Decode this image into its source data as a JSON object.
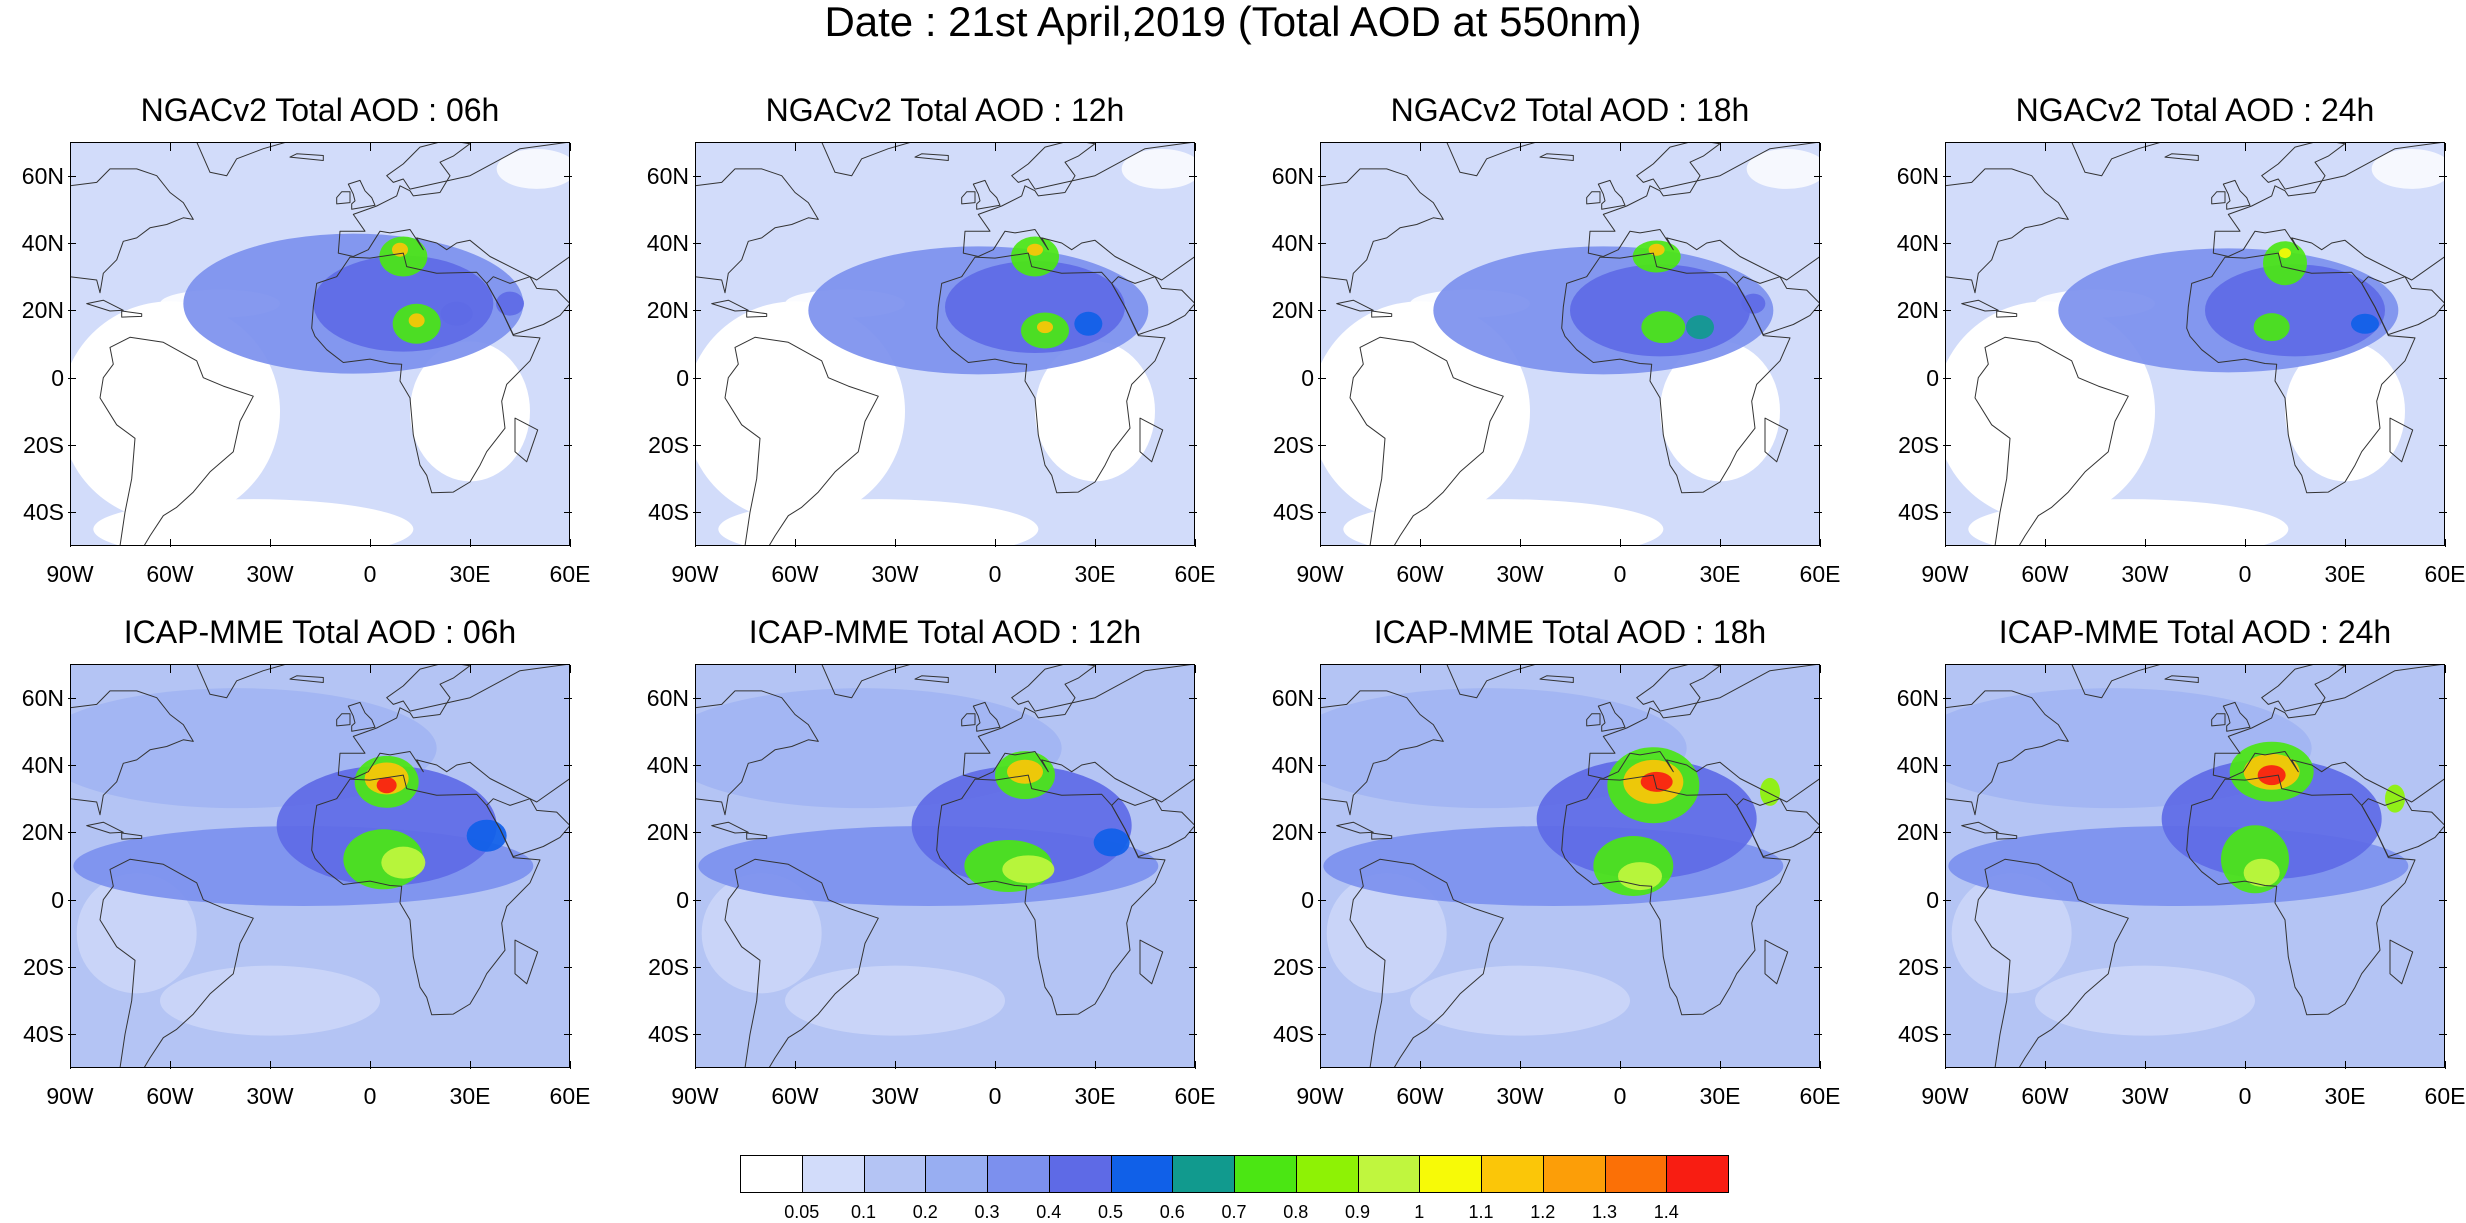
{
  "main_title": "Date : 21st April,2019 (Total AOD at 550nm)",
  "axis_labels": {
    "lat": [
      "60N",
      "40N",
      "20N",
      "0",
      "20S",
      "40S"
    ],
    "lon": [
      "90W",
      "60W",
      "30W",
      "0",
      "30E",
      "60E"
    ]
  },
  "map_extent": {
    "lon_min": -90,
    "lon_max": 60,
    "lat_min": -50,
    "lat_max": 70
  },
  "panels": [
    {
      "title": "NGACv2 Total AOD : 06h"
    },
    {
      "title": "NGACv2 Total AOD : 12h"
    },
    {
      "title": "NGACv2 Total AOD : 18h"
    },
    {
      "title": "NGACv2 Total AOD : 24h"
    },
    {
      "title": "ICAP-MME Total AOD : 06h"
    },
    {
      "title": "ICAP-MME Total AOD : 12h"
    },
    {
      "title": "ICAP-MME Total AOD : 18h"
    },
    {
      "title": "ICAP-MME Total AOD : 24h"
    }
  ],
  "colorbar": {
    "labels": [
      "0.05",
      "0.1",
      "0.2",
      "0.3",
      "0.4",
      "0.5",
      "0.6",
      "0.7",
      "0.8",
      "0.9",
      "1",
      "1.1",
      "1.2",
      "1.3",
      "1.4"
    ],
    "colors": [
      "#ffffff",
      "#d2dcfa",
      "#b4c4f4",
      "#98aef2",
      "#7c90ee",
      "#5e6ae6",
      "#1060e8",
      "#119a8e",
      "#4be613",
      "#8ef205",
      "#c0f63e",
      "#f7fa07",
      "#fbc608",
      "#fc9e08",
      "#fb7006",
      "#f81d12"
    ]
  },
  "map_colors": {
    "ocean_base": "#c0ccf6",
    "coast": "#333333"
  }
}
